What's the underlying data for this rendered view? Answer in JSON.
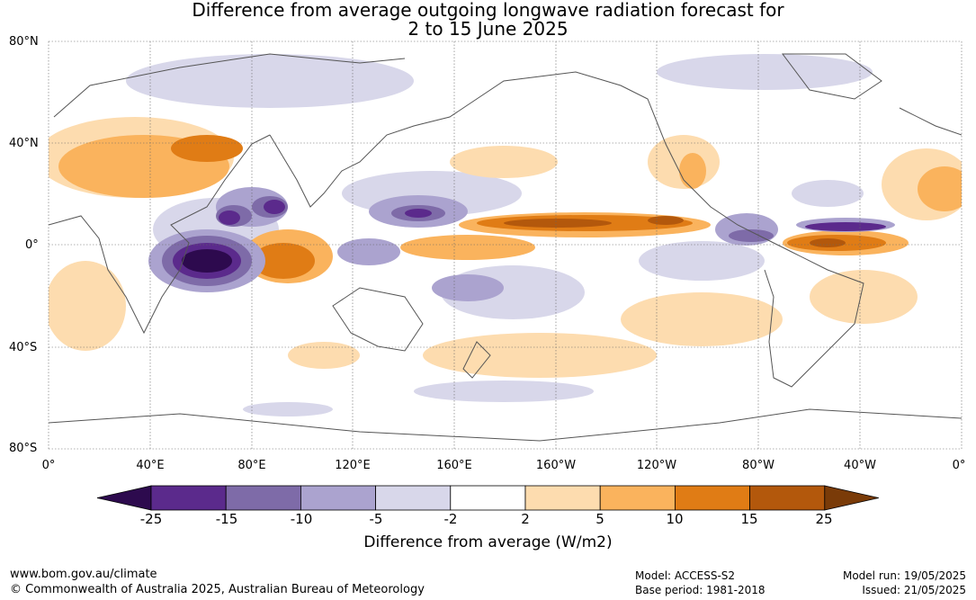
{
  "title": {
    "line1": "Difference from average outgoing longwave radiation forecast for",
    "line2": "2 to 15 June 2025"
  },
  "map": {
    "lat_labels": [
      "80°N",
      "40°N",
      "0°",
      "40°S",
      "80°S"
    ],
    "lon_labels": [
      "0°",
      "40°E",
      "80°E",
      "120°E",
      "160°E",
      "160°W",
      "120°W",
      "80°W",
      "40°W",
      "0°"
    ],
    "grid": true
  },
  "colorbar": {
    "ticks": [
      "-25",
      "-15",
      "-10",
      "-5",
      "-2",
      "2",
      "5",
      "10",
      "15",
      "25"
    ],
    "label": "Difference from average (W/m2)",
    "colors": [
      "#2d0a4e",
      "#5b2a8c",
      "#7e6ba8",
      "#aba3cf",
      "#d8d7ea",
      "#ffffff",
      "#fddcaf",
      "#fab35d",
      "#e07c15",
      "#b3580c",
      "#7a3b08"
    ]
  },
  "footer": {
    "url": "www.bom.gov.au/climate",
    "copyright": "© Commonwealth of Australia 2025, Australian Bureau of Meteorology",
    "model": "Model: ACCESS-S2",
    "base_period": "Base period: 1981-2018",
    "model_run": "Model run: 19/05/2025",
    "issued": "Issued: 21/05/2025"
  }
}
